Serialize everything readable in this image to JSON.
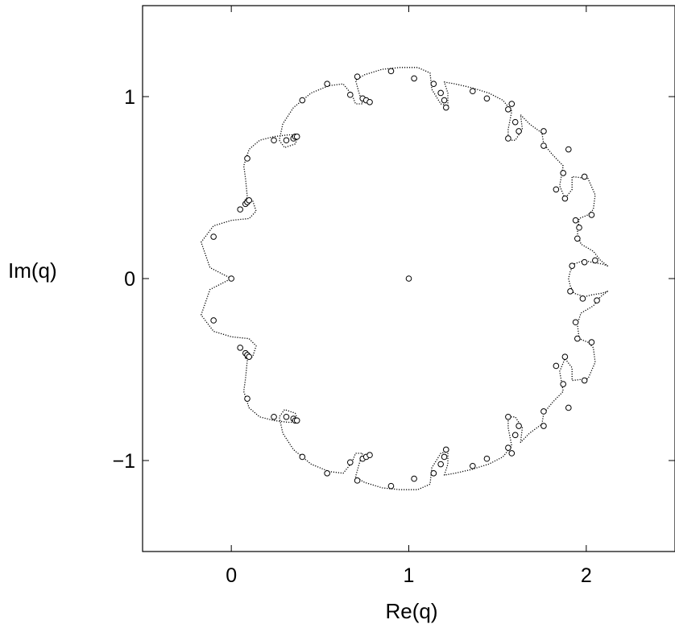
{
  "chart_data": {
    "type": "scatter",
    "title": "",
    "xlabel": "Re(q)",
    "ylabel": "Im(q)",
    "xlim": [
      -0.5,
      2.5
    ],
    "ylim": [
      -1.5,
      1.5
    ],
    "x_ticks": [
      0,
      1,
      2
    ],
    "y_ticks": [
      1,
      0,
      -1
    ],
    "x_tick_labels": [
      "0",
      "1",
      "2"
    ],
    "y_tick_labels": [
      "1",
      "0",
      "−1"
    ],
    "grid": false,
    "legend": "none",
    "series": [
      {
        "marker": "open-circle",
        "points": [
          [
            0.0,
            0.0
          ],
          [
            1.0,
            0.0
          ],
          [
            -0.1,
            0.23
          ],
          [
            0.05,
            0.38
          ],
          [
            0.08,
            0.41
          ],
          [
            0.09,
            0.42
          ],
          [
            0.1,
            0.43
          ],
          [
            0.09,
            0.66
          ],
          [
            0.24,
            0.76
          ],
          [
            0.31,
            0.76
          ],
          [
            0.35,
            0.77
          ],
          [
            0.36,
            0.78
          ],
          [
            0.37,
            0.78
          ],
          [
            0.4,
            0.98
          ],
          [
            0.54,
            1.07
          ],
          [
            0.67,
            1.01
          ],
          [
            0.71,
            1.11
          ],
          [
            0.74,
            0.99
          ],
          [
            0.76,
            0.98
          ],
          [
            0.78,
            0.97
          ],
          [
            0.9,
            1.14
          ],
          [
            1.03,
            1.1
          ],
          [
            1.14,
            1.07
          ],
          [
            1.18,
            1.02
          ],
          [
            1.2,
            0.98
          ],
          [
            1.21,
            0.94
          ],
          [
            1.36,
            1.03
          ],
          [
            1.44,
            0.99
          ],
          [
            1.56,
            0.93
          ],
          [
            1.58,
            0.96
          ],
          [
            1.56,
            0.77
          ],
          [
            1.6,
            0.86
          ],
          [
            1.62,
            0.81
          ],
          [
            1.76,
            0.73
          ],
          [
            1.76,
            0.81
          ],
          [
            1.83,
            0.49
          ],
          [
            1.87,
            0.58
          ],
          [
            1.88,
            0.44
          ],
          [
            1.9,
            0.71
          ],
          [
            1.99,
            0.56
          ],
          [
            1.94,
            0.32
          ],
          [
            1.96,
            0.28
          ],
          [
            1.95,
            0.22
          ],
          [
            2.03,
            0.35
          ],
          [
            1.99,
            0.09
          ],
          [
            2.05,
            0.1
          ],
          [
            1.92,
            0.07
          ],
          [
            1.91,
            -0.07
          ],
          [
            1.98,
            -0.11
          ],
          [
            2.06,
            -0.12
          ],
          [
            1.94,
            -0.24
          ],
          [
            1.95,
            -0.33
          ],
          [
            2.03,
            -0.35
          ],
          [
            1.83,
            -0.48
          ],
          [
            1.88,
            -0.43
          ],
          [
            1.87,
            -0.58
          ],
          [
            1.99,
            -0.56
          ],
          [
            1.9,
            -0.71
          ],
          [
            1.76,
            -0.73
          ],
          [
            1.76,
            -0.81
          ],
          [
            1.56,
            -0.76
          ],
          [
            1.6,
            -0.86
          ],
          [
            1.62,
            -0.81
          ],
          [
            1.56,
            -0.93
          ],
          [
            1.58,
            -0.96
          ],
          [
            1.44,
            -0.99
          ],
          [
            1.36,
            -1.03
          ],
          [
            1.14,
            -1.07
          ],
          [
            1.18,
            -1.02
          ],
          [
            1.2,
            -0.98
          ],
          [
            1.21,
            -0.94
          ],
          [
            1.03,
            -1.1
          ],
          [
            0.9,
            -1.14
          ],
          [
            0.71,
            -1.11
          ],
          [
            0.67,
            -1.01
          ],
          [
            0.74,
            -0.99
          ],
          [
            0.76,
            -0.98
          ],
          [
            0.78,
            -0.97
          ],
          [
            0.54,
            -1.07
          ],
          [
            0.4,
            -0.98
          ],
          [
            0.24,
            -0.76
          ],
          [
            0.31,
            -0.76
          ],
          [
            0.35,
            -0.77
          ],
          [
            0.36,
            -0.78
          ],
          [
            0.37,
            -0.78
          ],
          [
            0.09,
            -0.66
          ],
          [
            -0.1,
            -0.23
          ],
          [
            0.05,
            -0.38
          ],
          [
            0.08,
            -0.41
          ],
          [
            0.09,
            -0.42
          ],
          [
            0.1,
            -0.43
          ]
        ]
      },
      {
        "marker": "dotted-curve",
        "points": [
          [
            0.0,
            0.0
          ],
          [
            -0.12,
            0.06
          ],
          [
            -0.17,
            0.2
          ],
          [
            -0.1,
            0.29
          ],
          [
            0.0,
            0.32
          ],
          [
            0.1,
            0.33
          ],
          [
            0.14,
            0.37
          ],
          [
            0.12,
            0.43
          ],
          [
            0.08,
            0.44
          ],
          [
            0.07,
            0.4
          ],
          [
            0.09,
            0.45
          ],
          [
            0.08,
            0.55
          ],
          [
            0.07,
            0.62
          ],
          [
            0.1,
            0.71
          ],
          [
            0.16,
            0.76
          ],
          [
            0.24,
            0.78
          ],
          [
            0.32,
            0.79
          ],
          [
            0.38,
            0.79
          ],
          [
            0.36,
            0.74
          ],
          [
            0.3,
            0.72
          ],
          [
            0.27,
            0.76
          ],
          [
            0.29,
            0.85
          ],
          [
            0.35,
            0.94
          ],
          [
            0.45,
            1.02
          ],
          [
            0.55,
            1.06
          ],
          [
            0.63,
            1.07
          ],
          [
            0.68,
            1.01
          ],
          [
            0.7,
            0.96
          ],
          [
            0.74,
            0.96
          ],
          [
            0.72,
            1.02
          ],
          [
            0.7,
            1.09
          ],
          [
            0.75,
            1.12
          ],
          [
            0.85,
            1.15
          ],
          [
            0.95,
            1.16
          ],
          [
            1.05,
            1.16
          ],
          [
            1.12,
            1.13
          ],
          [
            1.13,
            1.04
          ],
          [
            1.18,
            0.96
          ],
          [
            1.22,
            0.95
          ],
          [
            1.22,
            1.02
          ],
          [
            1.2,
            1.08
          ],
          [
            1.26,
            1.07
          ],
          [
            1.35,
            1.05
          ],
          [
            1.45,
            1.02
          ],
          [
            1.53,
            0.98
          ],
          [
            1.58,
            0.92
          ],
          [
            1.56,
            0.82
          ],
          [
            1.56,
            0.76
          ],
          [
            1.6,
            0.76
          ],
          [
            1.64,
            0.82
          ],
          [
            1.63,
            0.9
          ],
          [
            1.68,
            0.85
          ],
          [
            1.75,
            0.8
          ],
          [
            1.76,
            0.74
          ],
          [
            1.81,
            0.68
          ],
          [
            1.87,
            0.62
          ],
          [
            1.85,
            0.51
          ],
          [
            1.88,
            0.44
          ],
          [
            1.92,
            0.49
          ],
          [
            1.92,
            0.56
          ],
          [
            2.01,
            0.55
          ],
          [
            2.05,
            0.46
          ],
          [
            2.04,
            0.38
          ],
          [
            2.01,
            0.35
          ],
          [
            1.96,
            0.33
          ],
          [
            1.95,
            0.25
          ],
          [
            1.97,
            0.19
          ],
          [
            2.04,
            0.15
          ],
          [
            2.08,
            0.1
          ],
          [
            2.12,
            0.07
          ],
          [
            2.09,
            0.08
          ],
          [
            2.03,
            0.09
          ],
          [
            1.99,
            0.1
          ],
          [
            1.93,
            0.08
          ],
          [
            1.91,
            0.04
          ],
          [
            1.9,
            0.0
          ],
          [
            1.91,
            -0.04
          ],
          [
            1.93,
            -0.08
          ],
          [
            1.99,
            -0.1
          ],
          [
            2.03,
            -0.09
          ],
          [
            2.09,
            -0.08
          ],
          [
            2.12,
            -0.07
          ],
          [
            2.08,
            -0.1
          ],
          [
            2.04,
            -0.15
          ],
          [
            1.97,
            -0.19
          ],
          [
            1.95,
            -0.25
          ],
          [
            1.96,
            -0.33
          ],
          [
            2.01,
            -0.35
          ],
          [
            2.04,
            -0.38
          ],
          [
            2.05,
            -0.46
          ],
          [
            2.01,
            -0.55
          ],
          [
            1.92,
            -0.56
          ],
          [
            1.92,
            -0.49
          ],
          [
            1.88,
            -0.44
          ],
          [
            1.85,
            -0.51
          ],
          [
            1.87,
            -0.62
          ],
          [
            1.81,
            -0.68
          ],
          [
            1.76,
            -0.74
          ],
          [
            1.75,
            -0.8
          ],
          [
            1.68,
            -0.85
          ],
          [
            1.63,
            -0.9
          ],
          [
            1.64,
            -0.82
          ],
          [
            1.6,
            -0.76
          ],
          [
            1.56,
            -0.76
          ],
          [
            1.56,
            -0.82
          ],
          [
            1.58,
            -0.92
          ],
          [
            1.53,
            -0.98
          ],
          [
            1.45,
            -1.02
          ],
          [
            1.35,
            -1.05
          ],
          [
            1.26,
            -1.07
          ],
          [
            1.2,
            -1.08
          ],
          [
            1.22,
            -1.02
          ],
          [
            1.22,
            -0.95
          ],
          [
            1.18,
            -0.96
          ],
          [
            1.13,
            -1.04
          ],
          [
            1.12,
            -1.13
          ],
          [
            1.05,
            -1.16
          ],
          [
            0.95,
            -1.16
          ],
          [
            0.85,
            -1.15
          ],
          [
            0.75,
            -1.12
          ],
          [
            0.7,
            -1.09
          ],
          [
            0.72,
            -1.02
          ],
          [
            0.74,
            -0.96
          ],
          [
            0.7,
            -0.96
          ],
          [
            0.68,
            -1.01
          ],
          [
            0.63,
            -1.07
          ],
          [
            0.55,
            -1.06
          ],
          [
            0.45,
            -1.02
          ],
          [
            0.35,
            -0.94
          ],
          [
            0.29,
            -0.85
          ],
          [
            0.27,
            -0.76
          ],
          [
            0.3,
            -0.72
          ],
          [
            0.36,
            -0.74
          ],
          [
            0.38,
            -0.79
          ],
          [
            0.32,
            -0.79
          ],
          [
            0.24,
            -0.78
          ],
          [
            0.16,
            -0.76
          ],
          [
            0.1,
            -0.71
          ],
          [
            0.07,
            -0.62
          ],
          [
            0.08,
            -0.55
          ],
          [
            0.09,
            -0.45
          ],
          [
            0.07,
            -0.4
          ],
          [
            0.08,
            -0.44
          ],
          [
            0.12,
            -0.43
          ],
          [
            0.14,
            -0.37
          ],
          [
            0.1,
            -0.33
          ],
          [
            0.0,
            -0.32
          ],
          [
            -0.1,
            -0.29
          ],
          [
            -0.17,
            -0.2
          ],
          [
            -0.12,
            -0.06
          ],
          [
            0.0,
            0.0
          ]
        ]
      }
    ]
  }
}
